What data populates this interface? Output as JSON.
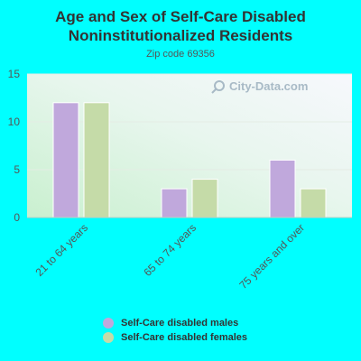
{
  "chart_data": {
    "type": "bar",
    "title_line1": "Age and Sex of Self-Care Disabled",
    "title_line2": "Noninstitutionalized Residents",
    "subtitle": "Zip code 69356",
    "categories": [
      "21 to 64 years",
      "65 to 74 years",
      "75 years and over"
    ],
    "series": [
      {
        "name": "Self-Care disabled males",
        "values": [
          12,
          3,
          6
        ],
        "color": "#c0a8dc"
      },
      {
        "name": "Self-Care disabled females",
        "values": [
          12,
          4,
          3
        ],
        "color": "#c5dba8"
      }
    ],
    "ylim": [
      0,
      15
    ],
    "yticks": [
      0,
      5,
      10,
      15
    ],
    "grid": true,
    "legend_position": "bottom"
  },
  "watermark": "City-Data.com"
}
